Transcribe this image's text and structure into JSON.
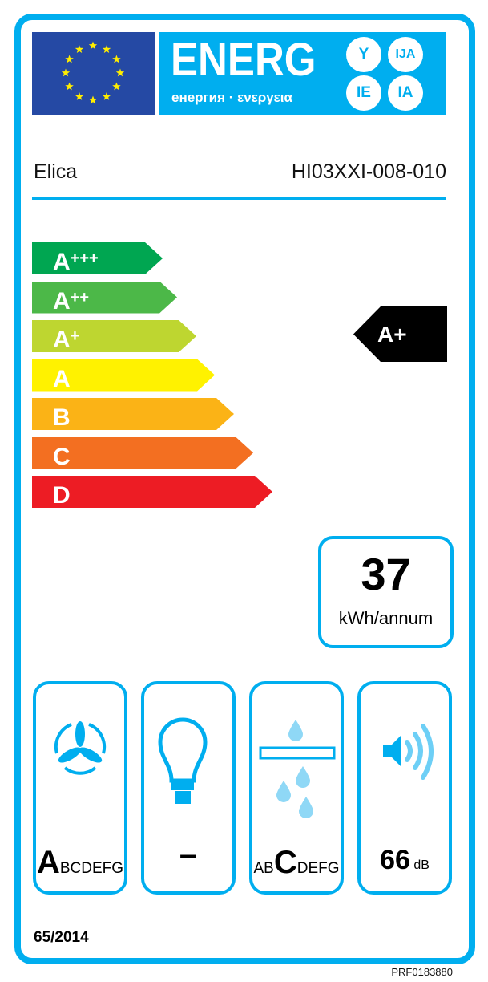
{
  "header": {
    "title": "ENERG",
    "subtitle": "енергия · ενεργεια",
    "language_badges": [
      "Y",
      "IJA",
      "IE",
      "IA"
    ]
  },
  "supplier": "Elica",
  "model": "HI03XXI-008-010",
  "scale": [
    {
      "label": "A",
      "plus": "+++",
      "color": "#00a651"
    },
    {
      "label": "A",
      "plus": "++",
      "color": "#4cb848"
    },
    {
      "label": "A",
      "plus": "+",
      "color": "#bed630"
    },
    {
      "label": "A",
      "plus": "",
      "color": "#fff200"
    },
    {
      "label": "B",
      "plus": "",
      "color": "#fbb316"
    },
    {
      "label": "C",
      "plus": "",
      "color": "#f36f21"
    },
    {
      "label": "D",
      "plus": "",
      "color": "#ed1c24"
    }
  ],
  "rating": "A+",
  "consumption": {
    "value": "37",
    "unit": "kWh/annum"
  },
  "indicators": {
    "fluid_dynamic": {
      "big": "A",
      "rest": "BCDEFG"
    },
    "lighting": {
      "value": "–"
    },
    "grease_filtering": {
      "pre": "AB",
      "big": "C",
      "rest": "DEFG"
    },
    "noise": {
      "value": "66",
      "unit": "dB"
    }
  },
  "regulation": "65/2014",
  "reference": "PRF0183880",
  "colors": {
    "accent": "#00aeef",
    "eu_blue": "#2549a4"
  }
}
